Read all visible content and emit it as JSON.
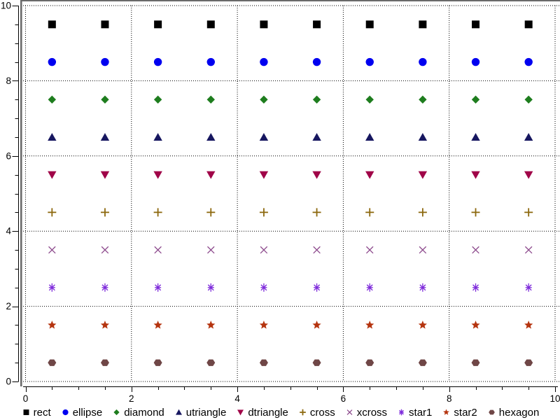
{
  "chart_data": {
    "type": "scatter",
    "title": "",
    "xlabel": "",
    "ylabel": "",
    "xlim": [
      0,
      10
    ],
    "ylim": [
      0,
      10
    ],
    "major_tick_step": 2,
    "minor_tick_step": 0.5,
    "grid": "dotted at major ticks",
    "x_tick_labels": [
      "0",
      "2",
      "4",
      "6",
      "8",
      "10"
    ],
    "y_tick_labels": [
      "0",
      "2",
      "4",
      "6",
      "8",
      "10"
    ],
    "x": [
      0.5,
      1.5,
      2.5,
      3.5,
      4.5,
      5.5,
      6.5,
      7.5,
      8.5,
      9.5
    ],
    "series": [
      {
        "name": "rect",
        "marker": "rect",
        "color": "#000000",
        "y": 9.5
      },
      {
        "name": "ellipse",
        "marker": "ellipse",
        "color": "#0000f0",
        "y": 8.5
      },
      {
        "name": "diamond",
        "marker": "diamond",
        "color": "#1e7d1e",
        "y": 7.5
      },
      {
        "name": "utriangle",
        "marker": "utriangle",
        "color": "#171760",
        "y": 6.5
      },
      {
        "name": "dtriangle",
        "marker": "dtriangle",
        "color": "#a00448",
        "y": 5.5
      },
      {
        "name": "cross",
        "marker": "cross",
        "color": "#8d690f",
        "y": 4.5
      },
      {
        "name": "xcross",
        "marker": "xcross",
        "color": "#8e4c8e",
        "y": 3.5
      },
      {
        "name": "star1",
        "marker": "star1",
        "color": "#7e2bdb",
        "y": 2.5
      },
      {
        "name": "star2",
        "marker": "star2",
        "color": "#b5340f",
        "y": 1.5
      },
      {
        "name": "hexagon",
        "marker": "hexagon",
        "color": "#6f4646",
        "y": 0.5
      }
    ],
    "legend": {
      "position": "bottom",
      "entries": [
        "rect",
        "ellipse",
        "diamond",
        "utriangle",
        "dtriangle",
        "cross",
        "xcross",
        "star1",
        "star2",
        "hexagon"
      ]
    }
  },
  "colors": {
    "background": "#ffffff",
    "grid": "#000000",
    "axis": "#000000",
    "frame_dark": "#6a6a6a",
    "frame_light": "#adadad",
    "text": "#000000"
  }
}
